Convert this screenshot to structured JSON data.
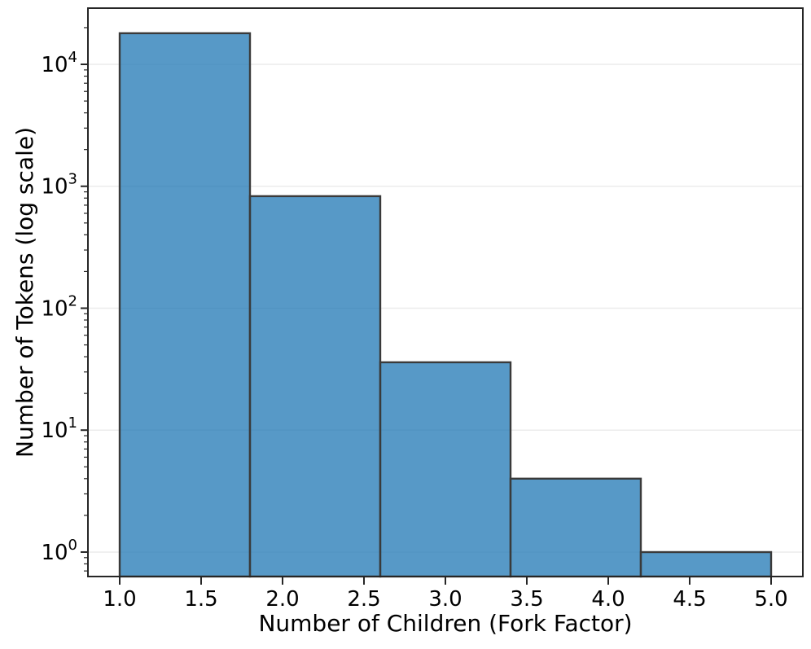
{
  "chart_data": {
    "type": "bar",
    "subtype": "histogram",
    "title": "",
    "xlabel": "Number of Children (Fork Factor)",
    "ylabel": "Number of Tokens (log scale)",
    "bin_edges": [
      1.0,
      1.8,
      2.6,
      3.4,
      4.2,
      5.0
    ],
    "counts": [
      18000,
      830,
      36,
      4,
      1
    ],
    "x_tick_values": [
      1.0,
      1.5,
      2.0,
      2.5,
      3.0,
      3.5,
      4.0,
      4.5,
      5.0
    ],
    "x_tick_labels": [
      "1.0",
      "1.5",
      "2.0",
      "2.5",
      "3.0",
      "3.5",
      "4.0",
      "4.5",
      "5.0"
    ],
    "y_scale": "log",
    "y_tick_base": "10",
    "y_tick_exponents": [
      0,
      1,
      2,
      3,
      4
    ],
    "y_minor_tick_decades": [
      -1,
      4
    ],
    "xlim": [
      0.805,
      5.195
    ],
    "ylim": [
      0.63,
      28900
    ],
    "grid": "major-y",
    "legend_position": "none",
    "colors": {
      "background": "#FFFFFF",
      "bar_fill": "#1F77B4",
      "bar_fill_opacity": 0.75,
      "bar_edge": "#3A3A3A",
      "spine": "#262626",
      "tick": "#262626",
      "grid": "#ECECEC",
      "text": "#000000"
    }
  }
}
